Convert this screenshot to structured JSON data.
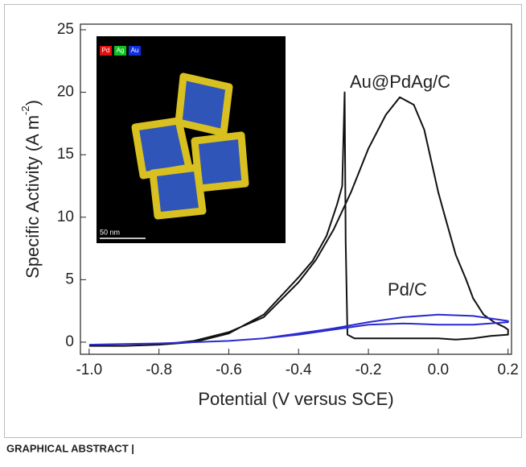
{
  "caption": "GRAPHICAL ABSTRACT |",
  "chart_data": {
    "type": "line",
    "xlabel": "Potential (V versus SCE)",
    "ylabel": [
      "Specific Activity (A m",
      "-2",
      ")"
    ],
    "xlim": [
      -1.025,
      0.21
    ],
    "ylim": [
      -0.97,
      25.45
    ],
    "xticks": [
      {
        "value": -1,
        "label": "-1.0"
      },
      -0.8,
      -0.6,
      -0.4,
      -0.2,
      {
        "value": 0,
        "label": "0.0"
      },
      0.2
    ],
    "yticks": [
      0,
      5,
      10,
      15,
      20,
      25
    ],
    "annotations": [
      {
        "text": "Au@PdAg/C",
        "color": "#222222"
      },
      {
        "text": "Pd/C",
        "color": "#2a2ad0"
      }
    ],
    "inset": {
      "legend": [
        "Pd",
        "Ag",
        "Au"
      ],
      "scale_bar": "50 nm"
    },
    "series": [
      {
        "name": "Au@PdAg/C",
        "color": "#111111",
        "x": [
          -1.0,
          -0.9,
          -0.8,
          -0.7,
          -0.6,
          -0.5,
          -0.4,
          -0.35,
          -0.3,
          -0.25,
          -0.2,
          -0.15,
          -0.11,
          -0.07,
          -0.04,
          -0.02,
          0.0,
          0.02,
          0.05,
          0.08,
          0.1,
          0.13,
          0.16,
          0.19,
          0.2,
          0.2,
          0.15,
          0.1,
          0.05,
          0.0,
          -0.1,
          -0.2,
          -0.24,
          -0.26,
          -0.265,
          -0.268,
          -0.275,
          -0.29,
          -0.32,
          -0.36,
          -0.4,
          -0.5,
          -0.6,
          -0.7,
          -0.8,
          -0.9,
          -1.0
        ],
        "values": [
          -0.3,
          -0.3,
          -0.2,
          0.1,
          0.8,
          2.0,
          4.8,
          6.6,
          9.0,
          12.0,
          15.5,
          18.2,
          19.6,
          19.0,
          17.0,
          14.5,
          12.0,
          10.0,
          7.0,
          5.0,
          3.5,
          2.2,
          1.6,
          1.2,
          1.0,
          0.6,
          0.5,
          0.3,
          0.2,
          0.3,
          0.3,
          0.3,
          0.3,
          0.6,
          8.0,
          20.0,
          12.5,
          11.0,
          8.5,
          6.5,
          5.2,
          2.2,
          0.7,
          0.0,
          -0.2,
          -0.3,
          -0.3
        ]
      },
      {
        "name": "Pd/C",
        "color": "#2a2ad0",
        "x": [
          -1.0,
          -0.8,
          -0.6,
          -0.5,
          -0.4,
          -0.3,
          -0.2,
          -0.1,
          0.0,
          0.1,
          0.15,
          0.2,
          0.2,
          0.1,
          0.0,
          -0.1,
          -0.2,
          -0.3,
          -0.4,
          -0.5,
          -0.6,
          -0.8,
          -1.0
        ],
        "values": [
          -0.2,
          -0.1,
          0.1,
          0.3,
          0.7,
          1.1,
          1.6,
          2.0,
          2.2,
          2.1,
          1.9,
          1.7,
          1.6,
          1.4,
          1.4,
          1.5,
          1.4,
          1.0,
          0.6,
          0.3,
          0.1,
          -0.1,
          -0.2
        ]
      }
    ]
  }
}
